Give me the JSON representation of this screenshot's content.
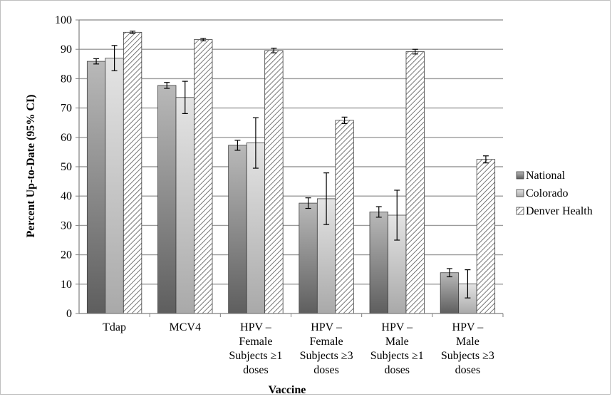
{
  "chart_data": {
    "type": "bar",
    "xlabel": "Vaccine",
    "ylabel": "Percent Up-to-Date (95% CI)",
    "ylim": [
      0,
      100
    ],
    "yticks": [
      0,
      10,
      20,
      30,
      40,
      50,
      60,
      70,
      80,
      90,
      100
    ],
    "grid": true,
    "legend_position": "right",
    "categories": [
      [
        "Tdap"
      ],
      [
        "MCV4"
      ],
      [
        "HPV –",
        "Female",
        "Subjects ≥1",
        "doses"
      ],
      [
        "HPV –",
        "Female",
        "Subjects ≥3",
        "doses"
      ],
      [
        "HPV –",
        "Male",
        "Subjects ≥1",
        "doses"
      ],
      [
        "HPV –",
        "Male",
        "Subjects ≥3",
        "doses"
      ]
    ],
    "series": [
      {
        "name": "National",
        "style": "dark-gradient",
        "values": [
          85.9,
          77.7,
          57.3,
          37.6,
          34.6,
          13.9
        ],
        "ci_low": [
          85.0,
          76.7,
          55.6,
          35.8,
          32.8,
          12.5
        ],
        "ci_high": [
          86.8,
          78.7,
          59.0,
          39.4,
          36.4,
          15.3
        ]
      },
      {
        "name": "Colorado",
        "style": "light-gradient",
        "values": [
          87.0,
          73.6,
          58.1,
          39.1,
          33.5,
          10.1
        ],
        "ci_low": [
          82.7,
          68.1,
          49.5,
          30.3,
          25.0,
          5.3
        ],
        "ci_high": [
          91.3,
          79.1,
          66.7,
          47.9,
          42.0,
          14.9
        ]
      },
      {
        "name": "Denver Health",
        "style": "hatched",
        "values": [
          95.8,
          93.3,
          89.6,
          65.8,
          89.2,
          52.5
        ],
        "ci_low": [
          95.4,
          92.9,
          88.8,
          64.7,
          88.4,
          51.3
        ],
        "ci_high": [
          96.2,
          93.7,
          90.4,
          66.9,
          90.0,
          53.7
        ]
      }
    ]
  }
}
